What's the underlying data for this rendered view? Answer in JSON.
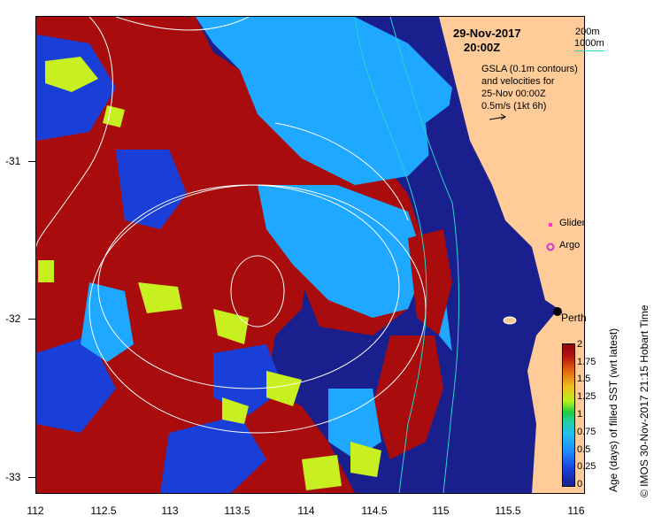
{
  "header": {
    "date": "29-Nov-2017",
    "time": "20:00Z"
  },
  "isobaths": {
    "label_200": "200m",
    "label_1000": "1000m",
    "line_color": "#27d4c8"
  },
  "notes": {
    "line1": "GSLA (0.1m contours)",
    "line2": "and velocities for",
    "line3": "25-Nov 00:00Z",
    "line4": "0.5m/s (1kt 6h)"
  },
  "legend": {
    "glider": "Glider",
    "argo": "Argo",
    "glider_color": "#ff33cc",
    "argo_color": "#cc33cc"
  },
  "city": {
    "name": "Perth"
  },
  "axes": {
    "x_ticks": [
      "112",
      "112.5",
      "113",
      "113.5",
      "114",
      "114.5",
      "115",
      "115.5",
      "116"
    ],
    "y_ticks": [
      "-31",
      "-32",
      "-33"
    ]
  },
  "colorbar": {
    "title": "Age (days) of filled SST (wrt latest)",
    "labels": [
      "2",
      "1.75",
      "1.5",
      "1.25",
      "1",
      "0.75",
      "0.5",
      "0.25",
      "0"
    ]
  },
  "credit": "© IMOS 30-Nov-2017 21:15 Hobart Time",
  "colors": {
    "land": "#ffcc99",
    "red": "#a80c0c",
    "dark_blue": "#1a1f8e",
    "mid_blue": "#1a3fd8",
    "cyan": "#1fa8ff",
    "yellow_green": "#c8f020"
  }
}
